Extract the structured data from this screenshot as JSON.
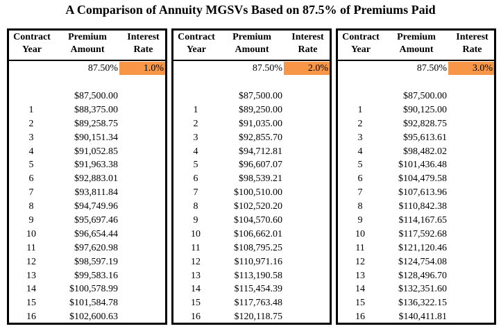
{
  "title": "A Comparison of Annuity MGSVs Based on 87.5% of Premiums Paid",
  "headers": {
    "contract_year": [
      "Contract",
      "Year"
    ],
    "premium_amount": [
      "Premium",
      "Amount"
    ],
    "interest_rate": [
      "Interest",
      "Rate"
    ]
  },
  "highlight_color": "#f79646",
  "panels": [
    {
      "percent": "87.50%",
      "rate": "1.0%",
      "rows": [
        {
          "year": "",
          "amount": "$87,500.00"
        },
        {
          "year": "1",
          "amount": "$88,375.00"
        },
        {
          "year": "2",
          "amount": "$89,258.75"
        },
        {
          "year": "3",
          "amount": "$90,151.34"
        },
        {
          "year": "4",
          "amount": "$91,052.85"
        },
        {
          "year": "5",
          "amount": "$91,963.38"
        },
        {
          "year": "6",
          "amount": "$92,883.01"
        },
        {
          "year": "7",
          "amount": "$93,811.84"
        },
        {
          "year": "8",
          "amount": "$94,749.96"
        },
        {
          "year": "9",
          "amount": "$95,697.46"
        },
        {
          "year": "10",
          "amount": "$96,654.44"
        },
        {
          "year": "11",
          "amount": "$97,620.98"
        },
        {
          "year": "12",
          "amount": "$98,597.19"
        },
        {
          "year": "13",
          "amount": "$99,583.16"
        },
        {
          "year": "14",
          "amount": "$100,578.99"
        },
        {
          "year": "15",
          "amount": "$101,584.78"
        },
        {
          "year": "16",
          "amount": "$102,600.63"
        }
      ]
    },
    {
      "percent": "87.50%",
      "rate": "2.0%",
      "rows": [
        {
          "year": "",
          "amount": "$87,500.00"
        },
        {
          "year": "1",
          "amount": "$89,250.00"
        },
        {
          "year": "2",
          "amount": "$91,035.00"
        },
        {
          "year": "3",
          "amount": "$92,855.70"
        },
        {
          "year": "4",
          "amount": "$94,712.81"
        },
        {
          "year": "5",
          "amount": "$96,607.07"
        },
        {
          "year": "6",
          "amount": "$98,539.21"
        },
        {
          "year": "7",
          "amount": "$100,510.00"
        },
        {
          "year": "8",
          "amount": "$102,520.20"
        },
        {
          "year": "9",
          "amount": "$104,570.60"
        },
        {
          "year": "10",
          "amount": "$106,662.01"
        },
        {
          "year": "11",
          "amount": "$108,795.25"
        },
        {
          "year": "12",
          "amount": "$110,971.16"
        },
        {
          "year": "13",
          "amount": "$113,190.58"
        },
        {
          "year": "14",
          "amount": "$115,454.39"
        },
        {
          "year": "15",
          "amount": "$117,763.48"
        },
        {
          "year": "16",
          "amount": "$120,118.75"
        }
      ]
    },
    {
      "percent": "87.50%",
      "rate": "3.0%",
      "rows": [
        {
          "year": "",
          "amount": "$87,500.00"
        },
        {
          "year": "1",
          "amount": "$90,125.00"
        },
        {
          "year": "2",
          "amount": "$92,828.75"
        },
        {
          "year": "3",
          "amount": "$95,613.61"
        },
        {
          "year": "4",
          "amount": "$98,482.02"
        },
        {
          "year": "5",
          "amount": "$101,436.48"
        },
        {
          "year": "6",
          "amount": "$104,479.58"
        },
        {
          "year": "7",
          "amount": "$107,613.96"
        },
        {
          "year": "8",
          "amount": "$110,842.38"
        },
        {
          "year": "9",
          "amount": "$114,167.65"
        },
        {
          "year": "10",
          "amount": "$117,592.68"
        },
        {
          "year": "11",
          "amount": "$121,120.46"
        },
        {
          "year": "12",
          "amount": "$124,754.08"
        },
        {
          "year": "13",
          "amount": "$128,496.70"
        },
        {
          "year": "14",
          "amount": "$132,351.60"
        },
        {
          "year": "15",
          "amount": "$136,322.15"
        },
        {
          "year": "16",
          "amount": "$140,411.81"
        }
      ]
    }
  ]
}
